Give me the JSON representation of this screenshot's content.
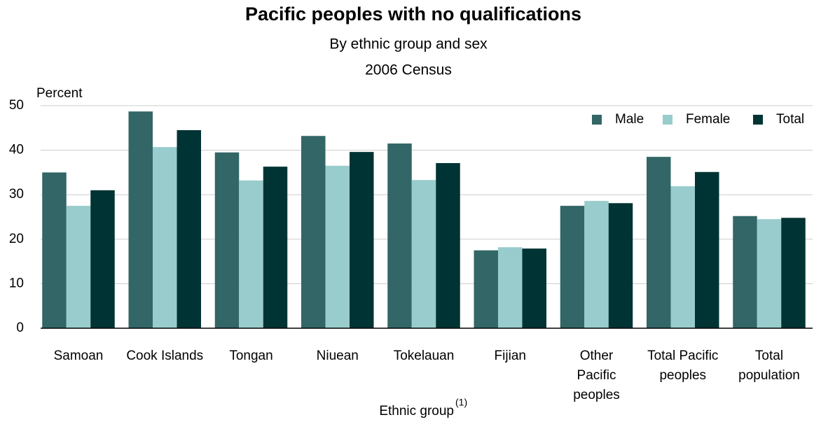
{
  "chart_data": {
    "type": "bar",
    "title": "Pacific peoples with no qualifications",
    "subtitle": "By ethnic group and sex",
    "subtitle2": "2006 Census",
    "y_label": "Percent",
    "x_label": "Ethnic group",
    "x_label_note": "(1)",
    "categories": [
      [
        "Samoan"
      ],
      [
        "Cook Islands"
      ],
      [
        "Tongan"
      ],
      [
        "Niuean"
      ],
      [
        "Tokelauan"
      ],
      [
        "Fijian"
      ],
      [
        "Other",
        "Pacific",
        "peoples"
      ],
      [
        "Total Pacific",
        "peoples"
      ],
      [
        "Total",
        "population"
      ]
    ],
    "series": [
      {
        "name": "Male",
        "color": "#336666",
        "values": [
          35.0,
          48.7,
          39.5,
          43.2,
          41.5,
          17.5,
          27.5,
          38.5,
          25.2
        ]
      },
      {
        "name": "Female",
        "color": "#99cccc",
        "values": [
          27.5,
          40.7,
          33.2,
          36.5,
          33.3,
          18.2,
          28.6,
          31.9,
          24.5
        ]
      },
      {
        "name": "Total",
        "color": "#003333",
        "values": [
          31.0,
          44.5,
          36.3,
          39.6,
          37.1,
          17.9,
          28.1,
          35.1,
          24.8
        ]
      }
    ],
    "ylim": [
      0,
      50
    ],
    "yticks": [
      0,
      10,
      20,
      30,
      40,
      50
    ],
    "grid": true,
    "legend": "top-right"
  }
}
